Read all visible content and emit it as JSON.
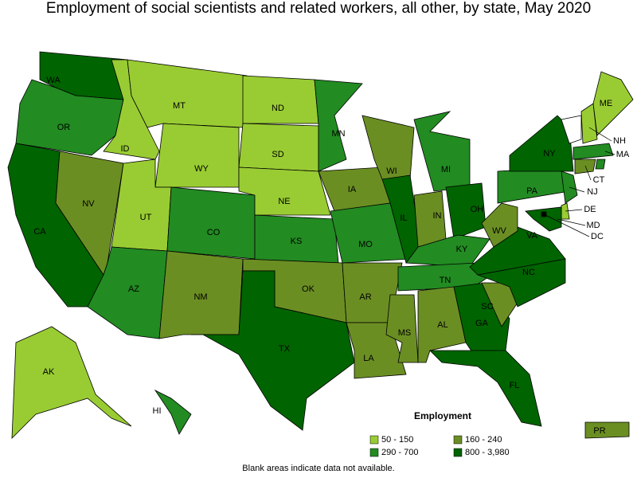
{
  "title": "Employment of social scientists and related workers, all other, by state, May 2020",
  "legend": {
    "title": "Employment",
    "entries": [
      {
        "label": "50 - 150",
        "color": "#99cc33"
      },
      {
        "label": "160 - 240",
        "color": "#6b8e23"
      },
      {
        "label": "290 - 700",
        "color": "#228b22"
      },
      {
        "label": "800 - 3,980",
        "color": "#006400"
      }
    ]
  },
  "footnote": "Blank areas indicate data not available.",
  "states": [
    {
      "label": "WA",
      "range": "800 - 3,980"
    },
    {
      "label": "OR",
      "range": "290 - 700"
    },
    {
      "label": "CA",
      "range": "800 - 3,980"
    },
    {
      "label": "NV",
      "range": "160 - 240"
    },
    {
      "label": "ID",
      "range": "50 - 150"
    },
    {
      "label": "MT",
      "range": "50 - 150"
    },
    {
      "label": "WY",
      "range": "50 - 150"
    },
    {
      "label": "UT",
      "range": "50 - 150"
    },
    {
      "label": "CO",
      "range": "290 - 700"
    },
    {
      "label": "AZ",
      "range": "290 - 700"
    },
    {
      "label": "NM",
      "range": "160 - 240"
    },
    {
      "label": "ND",
      "range": "50 - 150"
    },
    {
      "label": "SD",
      "range": "50 - 150"
    },
    {
      "label": "NE",
      "range": "50 - 150"
    },
    {
      "label": "KS",
      "range": "290 - 700"
    },
    {
      "label": "OK",
      "range": "160 - 240"
    },
    {
      "label": "TX",
      "range": "800 - 3,980"
    },
    {
      "label": "MN",
      "range": "290 - 700"
    },
    {
      "label": "IA",
      "range": "160 - 240"
    },
    {
      "label": "MO",
      "range": "290 - 700"
    },
    {
      "label": "AR",
      "range": "160 - 240"
    },
    {
      "label": "LA",
      "range": "160 - 240"
    },
    {
      "label": "WI",
      "range": "160 - 240"
    },
    {
      "label": "IL",
      "range": "800 - 3,980"
    },
    {
      "label": "MI",
      "range": "290 - 700"
    },
    {
      "label": "IN",
      "range": "160 - 240"
    },
    {
      "label": "OH",
      "range": "800 - 3,980"
    },
    {
      "label": "KY",
      "range": "290 - 700"
    },
    {
      "label": "TN",
      "range": "290 - 700"
    },
    {
      "label": "MS",
      "range": "160 - 240"
    },
    {
      "label": "AL",
      "range": "160 - 240"
    },
    {
      "label": "GA",
      "range": "800 - 3,980"
    },
    {
      "label": "FL",
      "range": "800 - 3,980"
    },
    {
      "label": "SC",
      "range": "160 - 240"
    },
    {
      "label": "NC",
      "range": "800 - 3,980"
    },
    {
      "label": "VA",
      "range": "800 - 3,980"
    },
    {
      "label": "WV",
      "range": "160 - 240"
    },
    {
      "label": "PA",
      "range": "290 - 700"
    },
    {
      "label": "NY",
      "range": "800 - 3,980"
    },
    {
      "range": null
    },
    {
      "label": "NH",
      "range": "50 - 150"
    },
    {
      "label": "ME",
      "range": "50 - 150"
    },
    {
      "label": "MA",
      "range": "290 - 700"
    },
    {
      "label": "CT",
      "range": "160 - 240"
    },
    {
      "range": "290 - 700"
    },
    {
      "label": "NJ",
      "range": "290 - 700"
    },
    {
      "label": "DE",
      "range": "50 - 150"
    },
    {
      "label": "MD",
      "range": "800 - 3,980"
    },
    {
      "label": "DC",
      "range": "800 - 3,980"
    },
    {
      "label": "AK",
      "range": "50 - 150"
    },
    {
      "label": "HI",
      "range": "290 - 700"
    },
    {
      "label": "PR",
      "range": "160 - 240"
    }
  ]
}
